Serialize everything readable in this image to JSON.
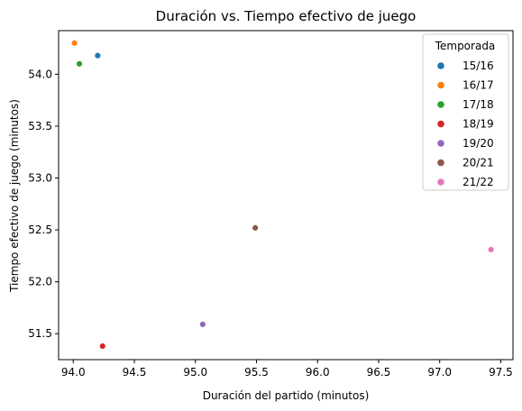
{
  "chart_data": {
    "type": "scatter",
    "title": "Duración vs. Tiempo efectivo de juego",
    "xlabel": "Duración del partido (minutos)",
    "ylabel": "Tiempo efectivo de juego (minutos)",
    "xlim": [
      93.88,
      97.6
    ],
    "ylim": [
      51.25,
      54.42
    ],
    "xticks": [
      94.0,
      94.5,
      95.0,
      95.5,
      96.0,
      96.5,
      97.0,
      97.5
    ],
    "xtick_labels": [
      "94.0",
      "94.5",
      "95.0",
      "95.5",
      "96.0",
      "96.5",
      "97.0",
      "97.5"
    ],
    "yticks": [
      51.5,
      52.0,
      52.5,
      53.0,
      53.5,
      54.0
    ],
    "ytick_labels": [
      "51.5",
      "52.0",
      "52.5",
      "53.0",
      "53.5",
      "54.0"
    ],
    "grid": false,
    "legend": {
      "title": "Temporada",
      "placement": "top-right"
    },
    "series": [
      {
        "name": "15/16",
        "color": "#1f77b4",
        "x": [
          94.2
        ],
        "y": [
          54.18
        ]
      },
      {
        "name": "16/17",
        "color": "#ff7f0e",
        "x": [
          94.01
        ],
        "y": [
          54.3
        ]
      },
      {
        "name": "17/18",
        "color": "#2ca02c",
        "x": [
          94.05
        ],
        "y": [
          54.1
        ]
      },
      {
        "name": "18/19",
        "color": "#d62728",
        "x": [
          94.24
        ],
        "y": [
          51.38
        ]
      },
      {
        "name": "19/20",
        "color": "#9467bd",
        "x": [
          95.06
        ],
        "y": [
          51.59
        ]
      },
      {
        "name": "20/21",
        "color": "#8c564b",
        "x": [
          95.49
        ],
        "y": [
          52.52
        ]
      },
      {
        "name": "21/22",
        "color": "#e377c2",
        "x": [
          97.42
        ],
        "y": [
          52.31
        ]
      }
    ]
  }
}
